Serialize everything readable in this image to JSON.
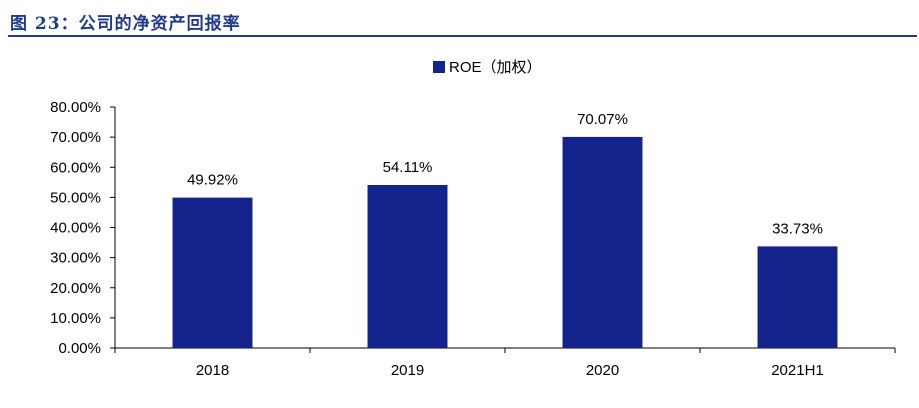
{
  "figure": {
    "title": "图 23：公司的净资产回报率"
  },
  "chart_data": {
    "type": "bar",
    "categories": [
      "2018",
      "2019",
      "2020",
      "2021H1"
    ],
    "series": [
      {
        "name": "ROE（加权）",
        "values": [
          49.92,
          54.11,
          70.07,
          33.73
        ]
      }
    ],
    "data_labels": [
      "49.92%",
      "54.11%",
      "70.07%",
      "33.73%"
    ],
    "y_ticks": [
      "0.00%",
      "10.00%",
      "20.00%",
      "30.00%",
      "40.00%",
      "50.00%",
      "60.00%",
      "70.00%",
      "80.00%"
    ],
    "ylim": [
      0,
      80
    ],
    "grid": false,
    "legend_position": "top-center",
    "colors": {
      "bar": "#14238c",
      "axis": "#000000",
      "title": "#1f3a8f"
    }
  }
}
